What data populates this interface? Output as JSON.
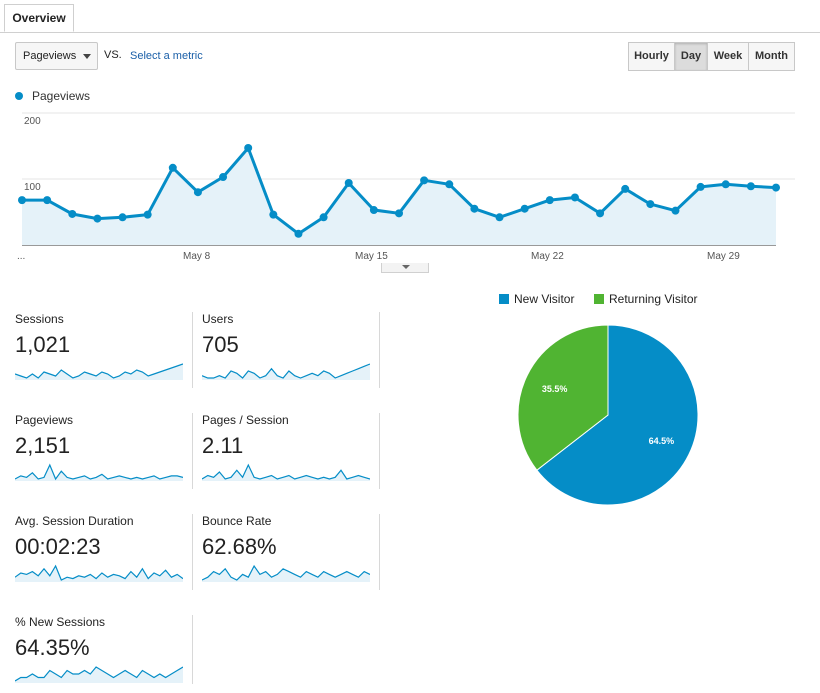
{
  "tabs": [
    {
      "label": "Overview"
    }
  ],
  "toolbar": {
    "metric_select": "Pageviews",
    "vs_label": "VS.",
    "select_metric": "Select a metric",
    "granularity": [
      "Hourly",
      "Day",
      "Week",
      "Month"
    ],
    "active_granularity": "Day"
  },
  "chart_data": [
    {
      "type": "area",
      "series": [
        {
          "name": "Pageviews",
          "color": "#058dc7",
          "values": [
            68,
            68,
            47,
            40,
            42,
            46,
            117,
            80,
            103,
            147,
            46,
            17,
            42,
            94,
            53,
            48,
            98,
            92,
            55,
            42,
            55,
            68,
            72,
            48,
            85,
            62,
            52,
            88,
            92,
            89,
            87
          ]
        }
      ],
      "x_tick_labels": [
        "...",
        "May 8",
        "May 15",
        "May 22",
        "May 29"
      ],
      "y_tick_labels": [
        "200",
        "100"
      ],
      "ylim": [
        0,
        200
      ],
      "grid": true
    },
    {
      "type": "pie",
      "categories": [
        "New Visitor",
        "Returning Visitor"
      ],
      "values": [
        64.5,
        35.5
      ],
      "colors": [
        "#058dc7",
        "#50b432"
      ],
      "slice_labels": [
        "64.5%",
        "35.5%"
      ],
      "legend": "top"
    }
  ],
  "scorecards": [
    {
      "label": "Sessions",
      "value": "1,021",
      "spark": [
        5,
        4,
        3,
        5,
        3,
        6,
        5,
        4,
        7,
        5,
        3,
        4,
        6,
        5,
        4,
        6,
        5,
        3,
        4,
        6,
        5,
        7,
        6,
        4,
        5,
        6,
        7,
        8,
        9,
        10
      ]
    },
    {
      "label": "Users",
      "value": "705",
      "spark": [
        4,
        3,
        3,
        4,
        3,
        6,
        5,
        3,
        6,
        5,
        3,
        4,
        7,
        4,
        3,
        6,
        4,
        3,
        4,
        5,
        4,
        6,
        5,
        3,
        4,
        5,
        6,
        7,
        8,
        9
      ]
    },
    {
      "label": "Pageviews",
      "value": "2,151",
      "spark": [
        4,
        6,
        5,
        8,
        4,
        5,
        13,
        4,
        9,
        5,
        4,
        5,
        6,
        4,
        5,
        7,
        4,
        5,
        6,
        5,
        4,
        5,
        4,
        5,
        6,
        4,
        5,
        6,
        6,
        5
      ]
    },
    {
      "label": "Pages / Session",
      "value": "2.11",
      "spark": [
        4,
        6,
        5,
        8,
        4,
        5,
        9,
        5,
        12,
        5,
        4,
        5,
        6,
        4,
        5,
        6,
        4,
        5,
        6,
        5,
        4,
        5,
        4,
        5,
        9,
        4,
        5,
        6,
        5,
        4
      ]
    },
    {
      "label": "Avg. Session Duration",
      "value": "00:02:23",
      "spark": [
        6,
        9,
        8,
        10,
        7,
        12,
        7,
        14,
        4,
        6,
        5,
        7,
        6,
        8,
        5,
        9,
        6,
        8,
        7,
        5,
        10,
        6,
        12,
        5,
        9,
        7,
        11,
        6,
        8,
        5
      ]
    },
    {
      "label": "Bounce Rate",
      "value": "62.68%",
      "spark": [
        6,
        7,
        9,
        8,
        10,
        7,
        6,
        8,
        7,
        11,
        8,
        9,
        7,
        8,
        10,
        9,
        8,
        7,
        9,
        8,
        7,
        9,
        8,
        7,
        8,
        9,
        8,
        7,
        9,
        8
      ]
    },
    {
      "label": "% New Sessions",
      "value": "64.35%",
      "spark": [
        4,
        5,
        5,
        6,
        5,
        5,
        7,
        6,
        5,
        7,
        6,
        6,
        7,
        6,
        8,
        7,
        6,
        5,
        6,
        7,
        6,
        5,
        7,
        6,
        5,
        6,
        5,
        6,
        7,
        8
      ]
    }
  ]
}
